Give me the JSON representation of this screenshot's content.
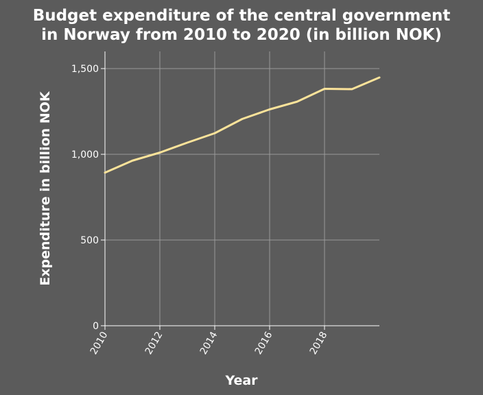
{
  "chart_data": {
    "type": "line",
    "title_line1": "Budget expenditure of the central government",
    "title_line2": "in Norway from 2010 to 2020 (in billion NOK)",
    "xlabel": "Year",
    "ylabel": "Expenditure in billion NOK",
    "xlim": [
      2010,
      2020
    ],
    "ylim": [
      0,
      1600
    ],
    "grid": true,
    "x_ticks": [
      2010,
      2012,
      2014,
      2016,
      2018
    ],
    "x_tick_labels": [
      "2010",
      "2012",
      "2014",
      "2016",
      "2018"
    ],
    "y_ticks": [
      0,
      500,
      1000,
      1500
    ],
    "y_tick_labels": [
      "0",
      "500",
      "1,000",
      "1,500"
    ],
    "series": [
      {
        "x": [
          2010,
          2011,
          2012,
          2013,
          2014,
          2015,
          2016,
          2017,
          2018,
          2019,
          2020
        ],
        "values": [
          893,
          963,
          1010,
          1068,
          1123,
          1206,
          1262,
          1307,
          1382,
          1380,
          1448
        ],
        "color": "#fbe39a"
      }
    ]
  }
}
